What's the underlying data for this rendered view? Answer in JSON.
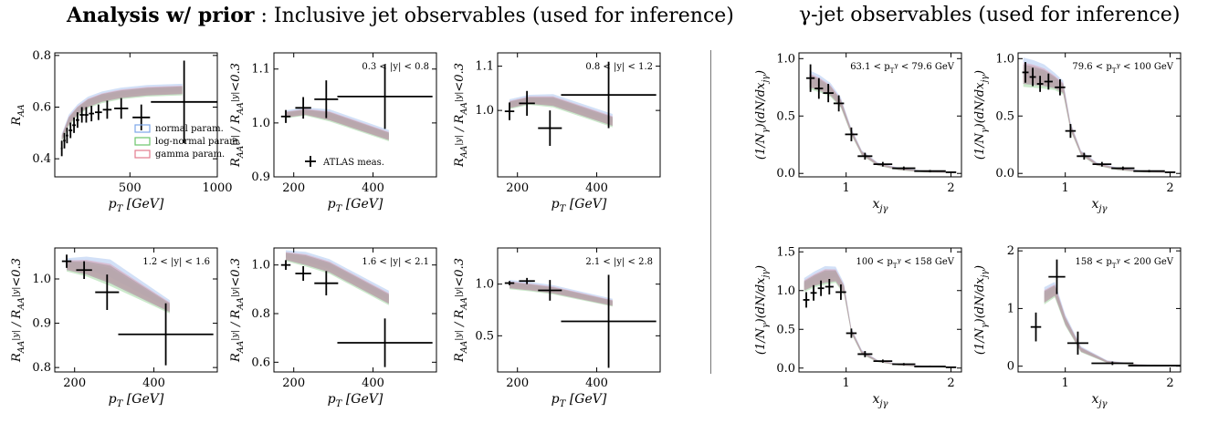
{
  "titles": {
    "left_bold": "Analysis w/ prior",
    "left_rest": " : Inclusive jet observables (used for inference)",
    "right": "γ-jet observables (used for inference)"
  },
  "legend": {
    "bands": [
      {
        "label": "normal param.",
        "color": "#7da7e8"
      },
      {
        "label": "log-normal param.",
        "color": "#6cc46c"
      },
      {
        "label": "gamma param.",
        "color": "#e37b8e"
      }
    ],
    "data_label": "ATLAS meas."
  },
  "colors": {
    "band_main": "#b6a4ac",
    "data": "#000000",
    "normal": "#7da7e8",
    "lognormal": "#6cc46c",
    "gamma": "#e37b8e"
  },
  "chart_data": [
    {
      "type": "line",
      "ylabel": "R_AA",
      "xlabel": "p_T [GeV]",
      "annotation": "",
      "xlim": [
        70,
        1000
      ],
      "ylim": [
        0.33,
        0.81
      ],
      "xticks": [
        500,
        1000
      ],
      "yticks": [
        0.4,
        0.6,
        0.8
      ],
      "band": {
        "x": [
          110,
          150,
          200,
          260,
          340,
          450,
          600,
          800
        ],
        "lo": [
          0.47,
          0.53,
          0.57,
          0.6,
          0.62,
          0.635,
          0.645,
          0.65
        ],
        "hi": [
          0.49,
          0.56,
          0.6,
          0.63,
          0.65,
          0.665,
          0.675,
          0.68
        ]
      },
      "points": [
        {
          "x": 110,
          "y": 0.44,
          "xerr": 5,
          "yerr": 0.03
        },
        {
          "x": 125,
          "y": 0.47,
          "xerr": 7,
          "yerr": 0.03
        },
        {
          "x": 140,
          "y": 0.49,
          "xerr": 7,
          "yerr": 0.03
        },
        {
          "x": 160,
          "y": 0.51,
          "xerr": 10,
          "yerr": 0.03
        },
        {
          "x": 180,
          "y": 0.53,
          "xerr": 10,
          "yerr": 0.03
        },
        {
          "x": 200,
          "y": 0.55,
          "xerr": 10,
          "yerr": 0.03
        },
        {
          "x": 225,
          "y": 0.57,
          "xerr": 12,
          "yerr": 0.03
        },
        {
          "x": 250,
          "y": 0.57,
          "xerr": 12,
          "yerr": 0.03
        },
        {
          "x": 280,
          "y": 0.575,
          "xerr": 15,
          "yerr": 0.03
        },
        {
          "x": 320,
          "y": 0.58,
          "xerr": 20,
          "yerr": 0.03
        },
        {
          "x": 370,
          "y": 0.59,
          "xerr": 25,
          "yerr": 0.035
        },
        {
          "x": 450,
          "y": 0.595,
          "xerr": 40,
          "yerr": 0.04
        },
        {
          "x": 565,
          "y": 0.56,
          "xerr": 50,
          "yerr": 0.05
        },
        {
          "x": 810,
          "y": 0.62,
          "xerr": 190,
          "yerr": 0.16
        }
      ]
    },
    {
      "type": "line",
      "ylabel": "R_AA^|y| / R_AA^|y|<0.3",
      "xlabel": "p_T [GeV]",
      "annotation": "0.3 < |y| < 0.8",
      "xlim": [
        150,
        560
      ],
      "ylim": [
        0.9,
        1.13
      ],
      "xticks": [
        200,
        400
      ],
      "yticks": [
        0.9,
        1.0,
        1.1
      ],
      "band": {
        "x": [
          180,
          230,
          290,
          440
        ],
        "lo": [
          1.01,
          1.015,
          1.005,
          0.968
        ],
        "hi": [
          1.02,
          1.025,
          1.02,
          0.982
        ]
      },
      "points": [
        {
          "x": 180,
          "y": 1.012,
          "xerr": 12,
          "yerr": 0.012
        },
        {
          "x": 224,
          "y": 1.028,
          "xerr": 20,
          "yerr": 0.02
        },
        {
          "x": 282,
          "y": 1.044,
          "xerr": 30,
          "yerr": 0.035
        },
        {
          "x": 430,
          "y": 1.049,
          "xerr": 120,
          "yerr": 0.06
        }
      ],
      "show_data_legend": true
    },
    {
      "type": "line",
      "ylabel": "R_AA^|y| / R_AA^|y|<0.3",
      "xlabel": "p_T [GeV]",
      "annotation": "0.8 < |y| < 1.2",
      "xlim": [
        150,
        560
      ],
      "ylim": [
        0.85,
        1.13
      ],
      "xticks": [
        200,
        400
      ],
      "yticks": [
        1.0,
        1.1
      ],
      "band": {
        "x": [
          180,
          230,
          290,
          440
        ],
        "lo": [
          1.005,
          1.015,
          1.01,
          0.965
        ],
        "hi": [
          1.02,
          1.03,
          1.03,
          0.985
        ]
      },
      "points": [
        {
          "x": 180,
          "y": 0.998,
          "xerr": 12,
          "yerr": 0.02
        },
        {
          "x": 224,
          "y": 1.016,
          "xerr": 20,
          "yerr": 0.028
        },
        {
          "x": 282,
          "y": 0.96,
          "xerr": 30,
          "yerr": 0.04
        },
        {
          "x": 430,
          "y": 1.035,
          "xerr": 120,
          "yerr": 0.075
        }
      ]
    },
    {
      "type": "line",
      "ylabel": "(1/N_γ)(dN/dx_jγ)",
      "xlabel": "x_jγ",
      "annotation": "63.1 < p_T^γ < 79.6 GeV",
      "xlim": [
        0.55,
        2.1
      ],
      "ylim": [
        -0.03,
        1.05
      ],
      "xticks": [
        1,
        2
      ],
      "yticks": [
        0.0,
        0.5,
        1.0
      ],
      "band": {
        "x": [
          0.65,
          0.75,
          0.85,
          0.95,
          1.05,
          1.15,
          1.3,
          1.5,
          1.75,
          2.0
        ],
        "lo": [
          0.75,
          0.72,
          0.68,
          0.58,
          0.34,
          0.16,
          0.07,
          0.03,
          0.01,
          0.005
        ],
        "hi": [
          0.86,
          0.82,
          0.76,
          0.64,
          0.38,
          0.19,
          0.09,
          0.045,
          0.02,
          0.01
        ]
      },
      "points": [
        {
          "x": 0.66,
          "y": 0.83,
          "xerr": 0.04,
          "yerr": 0.12
        },
        {
          "x": 0.74,
          "y": 0.74,
          "xerr": 0.04,
          "yerr": 0.09
        },
        {
          "x": 0.83,
          "y": 0.7,
          "xerr": 0.05,
          "yerr": 0.08
        },
        {
          "x": 0.93,
          "y": 0.61,
          "xerr": 0.05,
          "yerr": 0.07
        },
        {
          "x": 1.05,
          "y": 0.34,
          "xerr": 0.06,
          "yerr": 0.06
        },
        {
          "x": 1.18,
          "y": 0.15,
          "xerr": 0.07,
          "yerr": 0.03
        },
        {
          "x": 1.35,
          "y": 0.08,
          "xerr": 0.09,
          "yerr": 0.02
        },
        {
          "x": 1.55,
          "y": 0.045,
          "xerr": 0.11,
          "yerr": 0.015
        },
        {
          "x": 1.8,
          "y": 0.02,
          "xerr": 0.15,
          "yerr": 0.01
        },
        {
          "x": 2.0,
          "y": 0.01,
          "xerr": 0.05,
          "yerr": 0.005
        }
      ]
    },
    {
      "type": "line",
      "ylabel": "(1/N_γ)(dN/dx_jγ)",
      "xlabel": "x_jγ",
      "annotation": "79.6 < p_T^γ < 100 GeV",
      "xlim": [
        0.55,
        2.1
      ],
      "ylim": [
        -0.03,
        1.05
      ],
      "xticks": [
        1,
        2
      ],
      "yticks": [
        0.0,
        0.5,
        1.0
      ],
      "band": {
        "x": [
          0.6,
          0.7,
          0.8,
          0.9,
          0.98,
          1.05,
          1.15,
          1.3,
          1.5,
          1.75,
          2.0
        ],
        "lo": [
          0.78,
          0.77,
          0.76,
          0.74,
          0.7,
          0.38,
          0.16,
          0.07,
          0.03,
          0.01,
          0.005
        ],
        "hi": [
          0.95,
          0.93,
          0.9,
          0.84,
          0.78,
          0.43,
          0.19,
          0.09,
          0.045,
          0.02,
          0.01
        ]
      },
      "points": [
        {
          "x": 0.62,
          "y": 0.88,
          "xerr": 0.03,
          "yerr": 0.09
        },
        {
          "x": 0.69,
          "y": 0.84,
          "xerr": 0.03,
          "yerr": 0.08
        },
        {
          "x": 0.76,
          "y": 0.78,
          "xerr": 0.03,
          "yerr": 0.07
        },
        {
          "x": 0.84,
          "y": 0.8,
          "xerr": 0.04,
          "yerr": 0.07
        },
        {
          "x": 0.95,
          "y": 0.75,
          "xerr": 0.05,
          "yerr": 0.07
        },
        {
          "x": 1.05,
          "y": 0.37,
          "xerr": 0.05,
          "yerr": 0.06
        },
        {
          "x": 1.18,
          "y": 0.15,
          "xerr": 0.07,
          "yerr": 0.03
        },
        {
          "x": 1.35,
          "y": 0.08,
          "xerr": 0.09,
          "yerr": 0.02
        },
        {
          "x": 1.55,
          "y": 0.045,
          "xerr": 0.11,
          "yerr": 0.015
        },
        {
          "x": 1.8,
          "y": 0.02,
          "xerr": 0.15,
          "yerr": 0.01
        },
        {
          "x": 2.0,
          "y": 0.01,
          "xerr": 0.05,
          "yerr": 0.005
        }
      ]
    },
    {
      "type": "line",
      "ylabel": "R_AA^|y| / R_AA^|y|<0.3",
      "xlabel": "p_T [GeV]",
      "annotation": "1.2 < |y| < 1.6",
      "xlim": [
        150,
        560
      ],
      "ylim": [
        0.79,
        1.07
      ],
      "xticks": [
        200,
        400
      ],
      "yticks": [
        0.8,
        0.9,
        1.0
      ],
      "band": {
        "x": [
          180,
          230,
          290,
          440
        ],
        "lo": [
          1.02,
          1.01,
          0.99,
          0.925
        ],
        "hi": [
          1.04,
          1.04,
          1.03,
          0.945
        ]
      },
      "points": [
        {
          "x": 180,
          "y": 1.04,
          "xerr": 12,
          "yerr": 0.015
        },
        {
          "x": 224,
          "y": 1.02,
          "xerr": 20,
          "yerr": 0.02
        },
        {
          "x": 282,
          "y": 0.97,
          "xerr": 30,
          "yerr": 0.04
        },
        {
          "x": 430,
          "y": 0.875,
          "xerr": 120,
          "yerr": 0.07
        }
      ]
    },
    {
      "type": "line",
      "ylabel": "R_AA^|y| / R_AA^|y|<0.3",
      "xlabel": "p_T [GeV]",
      "annotation": "1.6 < |y| < 2.1",
      "xlim": [
        150,
        560
      ],
      "ylim": [
        0.56,
        1.07
      ],
      "xticks": [
        200,
        400
      ],
      "yticks": [
        0.6,
        0.8,
        1.0
      ],
      "band": {
        "x": [
          180,
          230,
          290,
          440
        ],
        "lo": [
          1.02,
          1.0,
          0.97,
          0.84
        ],
        "hi": [
          1.05,
          1.04,
          1.01,
          0.88
        ]
      },
      "points": [
        {
          "x": 180,
          "y": 1.0,
          "xerr": 12,
          "yerr": 0.02
        },
        {
          "x": 224,
          "y": 0.965,
          "xerr": 20,
          "yerr": 0.03
        },
        {
          "x": 282,
          "y": 0.925,
          "xerr": 30,
          "yerr": 0.05
        },
        {
          "x": 430,
          "y": 0.68,
          "xerr": 120,
          "yerr": 0.1
        }
      ]
    },
    {
      "type": "line",
      "ylabel": "R_AA^|y| / R_AA^|y|<0.3",
      "xlabel": "p_T [GeV]",
      "annotation": "2.1 < |y| < 2.8",
      "xlim": [
        150,
        560
      ],
      "ylim": [
        0.15,
        1.35
      ],
      "xticks": [
        200,
        400
      ],
      "yticks": [
        0.5,
        1.0
      ],
      "band": {
        "x": [
          180,
          230,
          290,
          440
        ],
        "lo": [
          0.96,
          0.94,
          0.91,
          0.79
        ],
        "hi": [
          1.02,
          1.0,
          0.97,
          0.84
        ]
      },
      "points": [
        {
          "x": 180,
          "y": 1.01,
          "xerr": 12,
          "yerr": 0.02
        },
        {
          "x": 224,
          "y": 1.03,
          "xerr": 20,
          "yerr": 0.03
        },
        {
          "x": 282,
          "y": 0.94,
          "xerr": 30,
          "yerr": 0.1
        },
        {
          "x": 430,
          "y": 0.64,
          "xerr": 120,
          "yerr": 0.45
        }
      ]
    },
    {
      "type": "line",
      "ylabel": "(1/N_γ)(dN/dx_jγ)",
      "xlabel": "x_jγ",
      "annotation": "100 < p_T^γ < 158 GeV",
      "xlim": [
        0.55,
        2.1
      ],
      "ylim": [
        -0.05,
        1.55
      ],
      "xticks": [
        1,
        2
      ],
      "yticks": [
        0.0,
        0.5,
        1.0,
        1.5
      ],
      "band": {
        "x": [
          0.6,
          0.7,
          0.8,
          0.9,
          0.98,
          1.05,
          1.15,
          1.3,
          1.5,
          1.75,
          2.0
        ],
        "lo": [
          1.0,
          1.06,
          1.1,
          1.12,
          0.96,
          0.45,
          0.18,
          0.08,
          0.035,
          0.015,
          0.005
        ],
        "hi": [
          1.12,
          1.2,
          1.26,
          1.26,
          1.06,
          0.5,
          0.22,
          0.1,
          0.05,
          0.025,
          0.01
        ]
      },
      "points": [
        {
          "x": 0.62,
          "y": 0.88,
          "xerr": 0.03,
          "yerr": 0.1
        },
        {
          "x": 0.69,
          "y": 0.97,
          "xerr": 0.03,
          "yerr": 0.1
        },
        {
          "x": 0.76,
          "y": 1.03,
          "xerr": 0.03,
          "yerr": 0.1
        },
        {
          "x": 0.84,
          "y": 1.05,
          "xerr": 0.04,
          "yerr": 0.1
        },
        {
          "x": 0.95,
          "y": 0.98,
          "xerr": 0.05,
          "yerr": 0.1
        },
        {
          "x": 1.05,
          "y": 0.45,
          "xerr": 0.05,
          "yerr": 0.06
        },
        {
          "x": 1.18,
          "y": 0.18,
          "xerr": 0.07,
          "yerr": 0.04
        },
        {
          "x": 1.35,
          "y": 0.09,
          "xerr": 0.09,
          "yerr": 0.02
        },
        {
          "x": 1.55,
          "y": 0.05,
          "xerr": 0.11,
          "yerr": 0.015
        },
        {
          "x": 1.8,
          "y": 0.02,
          "xerr": 0.15,
          "yerr": 0.01
        },
        {
          "x": 2.0,
          "y": 0.01,
          "xerr": 0.05,
          "yerr": 0.005
        }
      ]
    },
    {
      "type": "line",
      "ylabel": "(1/N_γ)(dN/dx_jγ)",
      "xlabel": "x_jγ",
      "annotation": "158 < p_T^γ < 200 GeV",
      "xlim": [
        0.55,
        2.1
      ],
      "ylim": [
        -0.1,
        2.05
      ],
      "xticks": [
        1,
        2
      ],
      "yticks": [
        0,
        1,
        2
      ],
      "band": {
        "x": [
          0.8,
          0.9,
          1.0,
          1.15,
          1.4,
          1.7,
          2.0
        ],
        "lo": [
          1.1,
          1.22,
          0.72,
          0.25,
          0.06,
          0.02,
          0.01
        ],
        "hi": [
          1.3,
          1.4,
          0.85,
          0.32,
          0.09,
          0.03,
          0.015
        ]
      },
      "points": [
        {
          "x": 0.72,
          "y": 0.68,
          "xerr": 0.05,
          "yerr": 0.25
        },
        {
          "x": 0.92,
          "y": 1.55,
          "xerr": 0.08,
          "yerr": 0.3
        },
        {
          "x": 1.12,
          "y": 0.4,
          "xerr": 0.1,
          "yerr": 0.2
        },
        {
          "x": 1.45,
          "y": 0.05,
          "xerr": 0.2,
          "yerr": 0.03
        },
        {
          "x": 1.85,
          "y": 0.01,
          "xerr": 0.25,
          "yerr": 0.01
        }
      ]
    }
  ]
}
